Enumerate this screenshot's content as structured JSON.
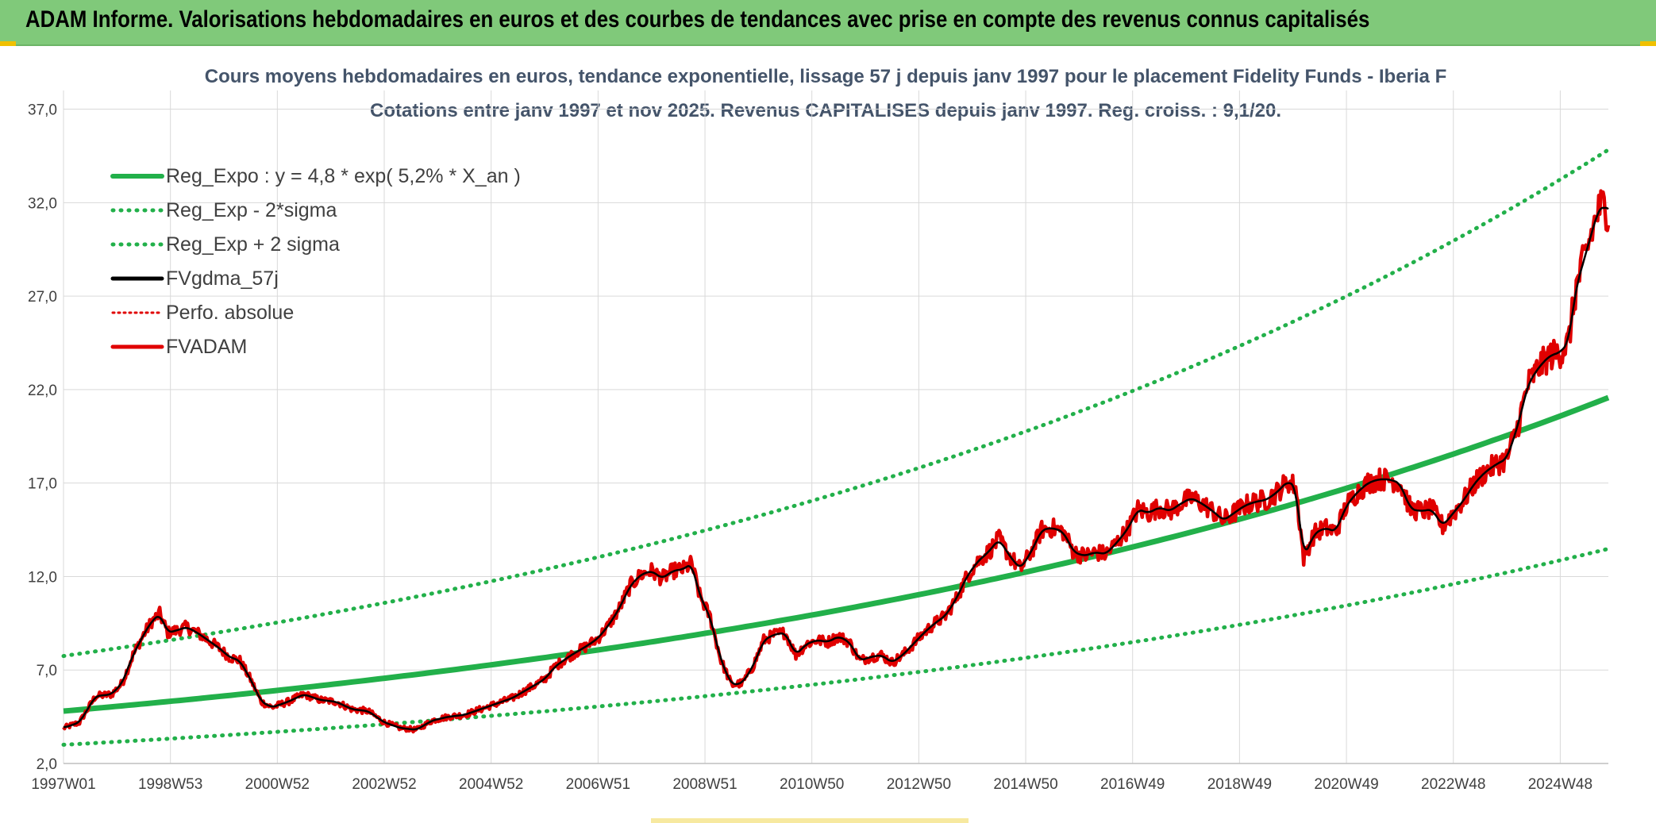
{
  "banner": {
    "title": "ADAM Informe. Valorisations hebdomadaires en euros et des courbes de tendances avec prise en compte des revenus connus capitalisés",
    "background": "#80c97a"
  },
  "chart_data": {
    "type": "line",
    "title_line1": "Cours moyens hebdomadaires en euros, tendance exponentielle, lissage 57 j depuis janv 1997 pour le placement Fidelity Funds - Iberia F",
    "title_line2": "Cotations entre janv 1997 et nov 2025. Revenus CAPITALISES depuis janv 1997. Reg. croiss. : 9,1/20.",
    "xlabel": "",
    "ylabel": "",
    "x_tick_labels": [
      "1997W01",
      "1998W53",
      "2000W52",
      "2002W52",
      "2004W52",
      "2006W51",
      "2008W51",
      "2010W50",
      "2012W50",
      "2014W50",
      "2016W49",
      "2018W49",
      "2020W49",
      "2022W48",
      "2024W48"
    ],
    "x_tick_years": [
      1997.0,
      1999.0,
      2001.0,
      2003.0,
      2005.0,
      2007.0,
      2009.0,
      2011.0,
      2013.0,
      2015.0,
      2017.0,
      2019.0,
      2021.0,
      2023.0,
      2025.0
    ],
    "xlim": [
      1997.0,
      2025.9
    ],
    "ylim": [
      2.0,
      38.0
    ],
    "y_ticks": [
      "2,0",
      "7,0",
      "12,0",
      "17,0",
      "22,0",
      "27,0",
      "32,0",
      "37,0"
    ],
    "y_tick_values": [
      2,
      7,
      12,
      17,
      22,
      27,
      32,
      37
    ],
    "grid": true,
    "legend_position": "top-left",
    "series": [
      {
        "name": "Reg_Expo : y = 4,8 * exp( 5,2% *  X_an )",
        "color": "#22b04a",
        "style": "solid-thick",
        "a": 4.8,
        "b": 0.052
      },
      {
        "name": "Reg_Exp - 2*sigma",
        "color": "#22b04a",
        "style": "dotted",
        "a": 3.0,
        "b": 0.052
      },
      {
        "name": "Reg_Exp + 2 sigma",
        "color": "#22b04a",
        "style": "dotted",
        "a": 7.75,
        "b": 0.052
      },
      {
        "name": "FVgdma_57j",
        "color": "#000000",
        "style": "solid"
      },
      {
        "name": "Perfo. absolue",
        "color": "#e00000",
        "style": "dotted"
      },
      {
        "name": "FVADAM",
        "color": "#e00000",
        "style": "solid-thick"
      }
    ],
    "price_points": [
      [
        1997.0,
        3.9
      ],
      [
        1997.3,
        4.2
      ],
      [
        1997.6,
        5.6
      ],
      [
        1997.9,
        5.7
      ],
      [
        1998.1,
        6.3
      ],
      [
        1998.3,
        7.8
      ],
      [
        1998.5,
        8.9
      ],
      [
        1998.65,
        9.6
      ],
      [
        1998.8,
        10.0
      ],
      [
        1998.95,
        9.0
      ],
      [
        1999.1,
        9.1
      ],
      [
        1999.3,
        9.3
      ],
      [
        1999.5,
        9.0
      ],
      [
        1999.7,
        8.6
      ],
      [
        1999.9,
        8.2
      ],
      [
        2000.1,
        7.7
      ],
      [
        2000.3,
        7.5
      ],
      [
        2000.5,
        6.5
      ],
      [
        2000.7,
        5.3
      ],
      [
        2000.9,
        5.0
      ],
      [
        2001.2,
        5.3
      ],
      [
        2001.5,
        5.7
      ],
      [
        2001.8,
        5.4
      ],
      [
        2002.1,
        5.3
      ],
      [
        2002.4,
        4.9
      ],
      [
        2002.7,
        4.8
      ],
      [
        2003.0,
        4.2
      ],
      [
        2003.3,
        3.9
      ],
      [
        2003.6,
        3.8
      ],
      [
        2003.9,
        4.3
      ],
      [
        2004.2,
        4.5
      ],
      [
        2004.5,
        4.6
      ],
      [
        2004.8,
        4.9
      ],
      [
        2005.1,
        5.2
      ],
      [
        2005.4,
        5.5
      ],
      [
        2005.7,
        6.0
      ],
      [
        2006.0,
        6.5
      ],
      [
        2006.2,
        7.2
      ],
      [
        2006.5,
        7.8
      ],
      [
        2006.8,
        8.3
      ],
      [
        2007.0,
        8.7
      ],
      [
        2007.2,
        9.4
      ],
      [
        2007.4,
        10.3
      ],
      [
        2007.6,
        11.5
      ],
      [
        2007.8,
        12.1
      ],
      [
        2008.0,
        12.3
      ],
      [
        2008.2,
        11.9
      ],
      [
        2008.4,
        12.3
      ],
      [
        2008.6,
        12.4
      ],
      [
        2008.75,
        12.7
      ],
      [
        2008.9,
        11.0
      ],
      [
        2009.1,
        9.8
      ],
      [
        2009.3,
        7.5
      ],
      [
        2009.5,
        6.2
      ],
      [
        2009.7,
        6.3
      ],
      [
        2009.9,
        7.2
      ],
      [
        2010.1,
        8.6
      ],
      [
        2010.3,
        8.9
      ],
      [
        2010.5,
        9.0
      ],
      [
        2010.7,
        7.8
      ],
      [
        2010.9,
        8.4
      ],
      [
        2011.1,
        8.6
      ],
      [
        2011.3,
        8.5
      ],
      [
        2011.5,
        8.8
      ],
      [
        2011.7,
        8.5
      ],
      [
        2011.9,
        7.5
      ],
      [
        2012.1,
        7.7
      ],
      [
        2012.3,
        7.8
      ],
      [
        2012.5,
        7.4
      ],
      [
        2012.7,
        7.8
      ],
      [
        2012.9,
        8.4
      ],
      [
        2013.1,
        9.0
      ],
      [
        2013.3,
        9.5
      ],
      [
        2013.5,
        9.9
      ],
      [
        2013.7,
        10.8
      ],
      [
        2013.9,
        12.0
      ],
      [
        2014.1,
        12.8
      ],
      [
        2014.3,
        13.3
      ],
      [
        2014.5,
        14.0
      ],
      [
        2014.7,
        13.1
      ],
      [
        2014.9,
        12.4
      ],
      [
        2015.1,
        13.3
      ],
      [
        2015.3,
        14.5
      ],
      [
        2015.5,
        14.6
      ],
      [
        2015.7,
        14.4
      ],
      [
        2015.9,
        13.3
      ],
      [
        2016.1,
        13.1
      ],
      [
        2016.3,
        13.3
      ],
      [
        2016.5,
        13.2
      ],
      [
        2016.7,
        13.8
      ],
      [
        2016.9,
        14.5
      ],
      [
        2017.1,
        15.6
      ],
      [
        2017.3,
        15.4
      ],
      [
        2017.5,
        15.7
      ],
      [
        2017.7,
        15.5
      ],
      [
        2017.9,
        15.9
      ],
      [
        2018.1,
        16.2
      ],
      [
        2018.3,
        15.9
      ],
      [
        2018.5,
        15.5
      ],
      [
        2018.7,
        15.0
      ],
      [
        2018.9,
        15.4
      ],
      [
        2019.1,
        15.8
      ],
      [
        2019.3,
        16.0
      ],
      [
        2019.5,
        16.1
      ],
      [
        2019.7,
        16.5
      ],
      [
        2019.9,
        17.1
      ],
      [
        2020.05,
        16.8
      ],
      [
        2020.2,
        13.0
      ],
      [
        2020.4,
        14.3
      ],
      [
        2020.6,
        14.6
      ],
      [
        2020.8,
        14.4
      ],
      [
        2021.0,
        15.8
      ],
      [
        2021.2,
        16.5
      ],
      [
        2021.4,
        17.0
      ],
      [
        2021.6,
        17.2
      ],
      [
        2021.8,
        17.2
      ],
      [
        2022.0,
        17.0
      ],
      [
        2022.2,
        15.6
      ],
      [
        2022.4,
        15.5
      ],
      [
        2022.6,
        15.6
      ],
      [
        2022.8,
        14.7
      ],
      [
        2023.0,
        15.4
      ],
      [
        2023.2,
        16.1
      ],
      [
        2023.4,
        17.0
      ],
      [
        2023.6,
        17.6
      ],
      [
        2023.8,
        18.0
      ],
      [
        2024.0,
        18.3
      ],
      [
        2024.2,
        20.0
      ],
      [
        2024.4,
        22.3
      ],
      [
        2024.6,
        23.2
      ],
      [
        2024.8,
        23.8
      ],
      [
        2025.0,
        24.0
      ],
      [
        2025.15,
        24.5
      ],
      [
        2025.3,
        27.5
      ],
      [
        2025.5,
        29.5
      ],
      [
        2025.7,
        31.5
      ],
      [
        2025.8,
        31.9
      ],
      [
        2025.9,
        31.5
      ]
    ]
  }
}
